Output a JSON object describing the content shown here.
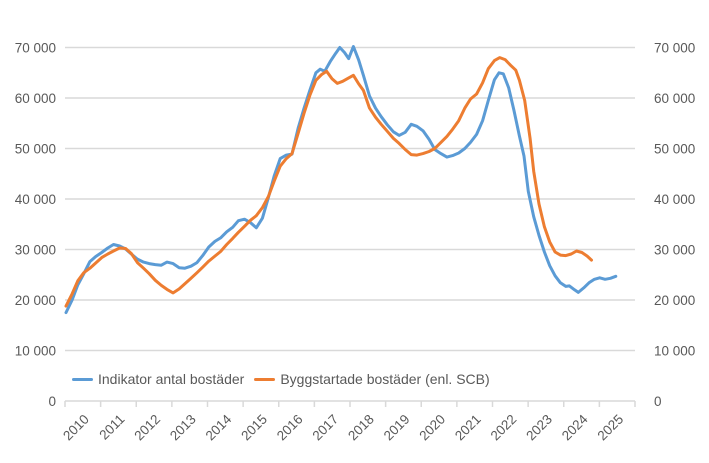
{
  "chart_data": {
    "type": "line",
    "title": "",
    "grid": true,
    "legend_position": "bottom-inside",
    "x_axis": {
      "categories": [
        "2010",
        "2011",
        "2012",
        "2013",
        "2014",
        "2015",
        "2016",
        "2017",
        "2018",
        "2019",
        "2020",
        "2021",
        "2022",
        "2023",
        "2024",
        "2025"
      ],
      "range": [
        2010,
        2026
      ],
      "tick_count": 17
    },
    "y_axis": {
      "min": 0,
      "max": 70000,
      "tick_interval": 10000,
      "tick_labels": [
        "0",
        "10 000",
        "20 000",
        "30 000",
        "40 000",
        "50 000",
        "60 000",
        "70 000"
      ],
      "mirrored_right_axis": true
    },
    "series": [
      {
        "name": "Indikator antal bostäder",
        "color": "#5B9BD5",
        "points": [
          [
            2010.0,
            17500
          ],
          [
            2010.17,
            20000
          ],
          [
            2010.33,
            23000
          ],
          [
            2010.5,
            25200
          ],
          [
            2010.67,
            27600
          ],
          [
            2010.83,
            28600
          ],
          [
            2011.0,
            29400
          ],
          [
            2011.17,
            30300
          ],
          [
            2011.33,
            31000
          ],
          [
            2011.5,
            30700
          ],
          [
            2011.67,
            30100
          ],
          [
            2011.83,
            29100
          ],
          [
            2012.0,
            28100
          ],
          [
            2012.17,
            27500
          ],
          [
            2012.33,
            27200
          ],
          [
            2012.5,
            27000
          ],
          [
            2012.67,
            26900
          ],
          [
            2012.83,
            27500
          ],
          [
            2013.0,
            27200
          ],
          [
            2013.17,
            26400
          ],
          [
            2013.33,
            26300
          ],
          [
            2013.5,
            26700
          ],
          [
            2013.67,
            27400
          ],
          [
            2013.83,
            28800
          ],
          [
            2014.0,
            30500
          ],
          [
            2014.17,
            31600
          ],
          [
            2014.33,
            32300
          ],
          [
            2014.5,
            33500
          ],
          [
            2014.67,
            34400
          ],
          [
            2014.83,
            35700
          ],
          [
            2015.0,
            36000
          ],
          [
            2015.17,
            35300
          ],
          [
            2015.33,
            34300
          ],
          [
            2015.5,
            36200
          ],
          [
            2015.67,
            40300
          ],
          [
            2015.83,
            44500
          ],
          [
            2016.0,
            48000
          ],
          [
            2016.17,
            48700
          ],
          [
            2016.33,
            48900
          ],
          [
            2016.5,
            54000
          ],
          [
            2016.67,
            58000
          ],
          [
            2016.83,
            61500
          ],
          [
            2017.0,
            65000
          ],
          [
            2017.12,
            65700
          ],
          [
            2017.25,
            65300
          ],
          [
            2017.4,
            67200
          ],
          [
            2017.55,
            68800
          ],
          [
            2017.67,
            70000
          ],
          [
            2017.8,
            69000
          ],
          [
            2017.92,
            67800
          ],
          [
            2018.05,
            70200
          ],
          [
            2018.2,
            67500
          ],
          [
            2018.33,
            64500
          ],
          [
            2018.5,
            60400
          ],
          [
            2018.67,
            58000
          ],
          [
            2018.83,
            56300
          ],
          [
            2019.0,
            54700
          ],
          [
            2019.17,
            53300
          ],
          [
            2019.33,
            52600
          ],
          [
            2019.5,
            53200
          ],
          [
            2019.67,
            54800
          ],
          [
            2019.83,
            54400
          ],
          [
            2020.0,
            53500
          ],
          [
            2020.17,
            51800
          ],
          [
            2020.33,
            49800
          ],
          [
            2020.5,
            49000
          ],
          [
            2020.67,
            48300
          ],
          [
            2020.83,
            48600
          ],
          [
            2021.0,
            49100
          ],
          [
            2021.17,
            50000
          ],
          [
            2021.33,
            51200
          ],
          [
            2021.5,
            52800
          ],
          [
            2021.67,
            55500
          ],
          [
            2021.83,
            59500
          ],
          [
            2022.0,
            63600
          ],
          [
            2022.13,
            65000
          ],
          [
            2022.25,
            64800
          ],
          [
            2022.4,
            62000
          ],
          [
            2022.55,
            57500
          ],
          [
            2022.7,
            52500
          ],
          [
            2022.83,
            48500
          ],
          [
            2022.95,
            41500
          ],
          [
            2023.1,
            36500
          ],
          [
            2023.25,
            32800
          ],
          [
            2023.4,
            29500
          ],
          [
            2023.55,
            26800
          ],
          [
            2023.7,
            24800
          ],
          [
            2023.85,
            23400
          ],
          [
            2024.0,
            22700
          ],
          [
            2024.1,
            22800
          ],
          [
            2024.25,
            22000
          ],
          [
            2024.35,
            21500
          ],
          [
            2024.5,
            22400
          ],
          [
            2024.65,
            23400
          ],
          [
            2024.8,
            24100
          ],
          [
            2024.95,
            24400
          ],
          [
            2025.1,
            24100
          ],
          [
            2025.25,
            24300
          ],
          [
            2025.4,
            24700
          ]
        ]
      },
      {
        "name": "Byggstartade bostäder (enl. SCB)",
        "color": "#ED7D31",
        "points": [
          [
            2010.0,
            18800
          ],
          [
            2010.17,
            21200
          ],
          [
            2010.33,
            23800
          ],
          [
            2010.5,
            25400
          ],
          [
            2010.67,
            26300
          ],
          [
            2010.83,
            27300
          ],
          [
            2011.0,
            28400
          ],
          [
            2011.17,
            29100
          ],
          [
            2011.33,
            29700
          ],
          [
            2011.5,
            30300
          ],
          [
            2011.67,
            30200
          ],
          [
            2011.83,
            29200
          ],
          [
            2012.0,
            27400
          ],
          [
            2012.17,
            26300
          ],
          [
            2012.33,
            25200
          ],
          [
            2012.5,
            23900
          ],
          [
            2012.67,
            22900
          ],
          [
            2012.83,
            22100
          ],
          [
            2013.0,
            21400
          ],
          [
            2013.17,
            22200
          ],
          [
            2013.33,
            23200
          ],
          [
            2013.5,
            24300
          ],
          [
            2013.67,
            25400
          ],
          [
            2013.83,
            26500
          ],
          [
            2014.0,
            27700
          ],
          [
            2014.17,
            28700
          ],
          [
            2014.33,
            29600
          ],
          [
            2014.5,
            31000
          ],
          [
            2014.67,
            32200
          ],
          [
            2014.83,
            33400
          ],
          [
            2015.0,
            34600
          ],
          [
            2015.17,
            35800
          ],
          [
            2015.33,
            36700
          ],
          [
            2015.5,
            38300
          ],
          [
            2015.67,
            40500
          ],
          [
            2015.83,
            43500
          ],
          [
            2016.0,
            46500
          ],
          [
            2016.17,
            48000
          ],
          [
            2016.33,
            49000
          ],
          [
            2016.5,
            53000
          ],
          [
            2016.67,
            57000
          ],
          [
            2016.83,
            60500
          ],
          [
            2017.0,
            63500
          ],
          [
            2017.15,
            64600
          ],
          [
            2017.3,
            65300
          ],
          [
            2017.45,
            63800
          ],
          [
            2017.6,
            62900
          ],
          [
            2017.75,
            63300
          ],
          [
            2017.9,
            63900
          ],
          [
            2018.05,
            64500
          ],
          [
            2018.2,
            62800
          ],
          [
            2018.33,
            61500
          ],
          [
            2018.5,
            58000
          ],
          [
            2018.67,
            56200
          ],
          [
            2018.83,
            54800
          ],
          [
            2019.0,
            53400
          ],
          [
            2019.17,
            52000
          ],
          [
            2019.33,
            51000
          ],
          [
            2019.5,
            49800
          ],
          [
            2019.67,
            48800
          ],
          [
            2019.83,
            48700
          ],
          [
            2020.0,
            49000
          ],
          [
            2020.17,
            49400
          ],
          [
            2020.33,
            50000
          ],
          [
            2020.5,
            51200
          ],
          [
            2020.67,
            52400
          ],
          [
            2020.83,
            53800
          ],
          [
            2021.0,
            55500
          ],
          [
            2021.17,
            58000
          ],
          [
            2021.33,
            59800
          ],
          [
            2021.5,
            60800
          ],
          [
            2021.67,
            63000
          ],
          [
            2021.83,
            65800
          ],
          [
            2022.0,
            67400
          ],
          [
            2022.15,
            68000
          ],
          [
            2022.3,
            67600
          ],
          [
            2022.45,
            66500
          ],
          [
            2022.6,
            65500
          ],
          [
            2022.7,
            63500
          ],
          [
            2022.85,
            59500
          ],
          [
            2023.0,
            52000
          ],
          [
            2023.1,
            45500
          ],
          [
            2023.25,
            39000
          ],
          [
            2023.4,
            34500
          ],
          [
            2023.55,
            31500
          ],
          [
            2023.7,
            29500
          ],
          [
            2023.85,
            28900
          ],
          [
            2024.0,
            28800
          ],
          [
            2024.15,
            29100
          ],
          [
            2024.3,
            29700
          ],
          [
            2024.45,
            29400
          ],
          [
            2024.6,
            28700
          ],
          [
            2024.72,
            27900
          ]
        ]
      }
    ]
  },
  "colors": {
    "grid": "#D9D9D9",
    "axis": "#D9D9D9",
    "tick": "#D9D9D9",
    "label_text": "#595959",
    "background": "#FFFFFF"
  }
}
